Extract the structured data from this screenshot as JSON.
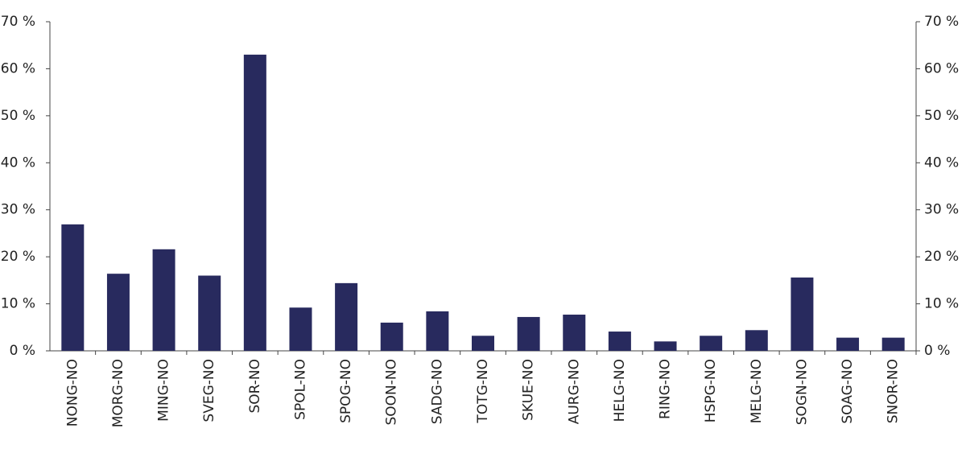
{
  "chart_data": {
    "type": "bar",
    "categories": [
      "NONG-NO",
      "MORG-NO",
      "MING-NO",
      "SVEG-NO",
      "SOR-NO",
      "SPOL-NO",
      "SPOG-NO",
      "SOON-NO",
      "SADG-NO",
      "TOTG-NO",
      "SKUE-NO",
      "AURG-NO",
      "HELG-NO",
      "RING-NO",
      "HSPG-NO",
      "MELG-NO",
      "SOGN-NO",
      "SOAG-NO",
      "SNOR-NO"
    ],
    "values": [
      26.9,
      16.4,
      21.6,
      16,
      63,
      9.2,
      14.4,
      6,
      8.4,
      3.2,
      7.2,
      7.7,
      4.1,
      2,
      3.2,
      4.4,
      15.6,
      2.8,
      2.8
    ],
    "color": "#282a5e",
    "ylim": [
      0,
      70
    ],
    "yticks": [
      {
        "value": 0,
        "label": "0 %"
      },
      {
        "value": 10,
        "label": "10 %"
      },
      {
        "value": 20,
        "label": "20 %"
      },
      {
        "value": 30,
        "label": "30 %"
      },
      {
        "value": 40,
        "label": "40 %"
      },
      {
        "value": 50,
        "label": "50 %"
      },
      {
        "value": 60,
        "label": "60 %"
      },
      {
        "value": 70,
        "label": "70 %"
      }
    ],
    "grid": false
  }
}
